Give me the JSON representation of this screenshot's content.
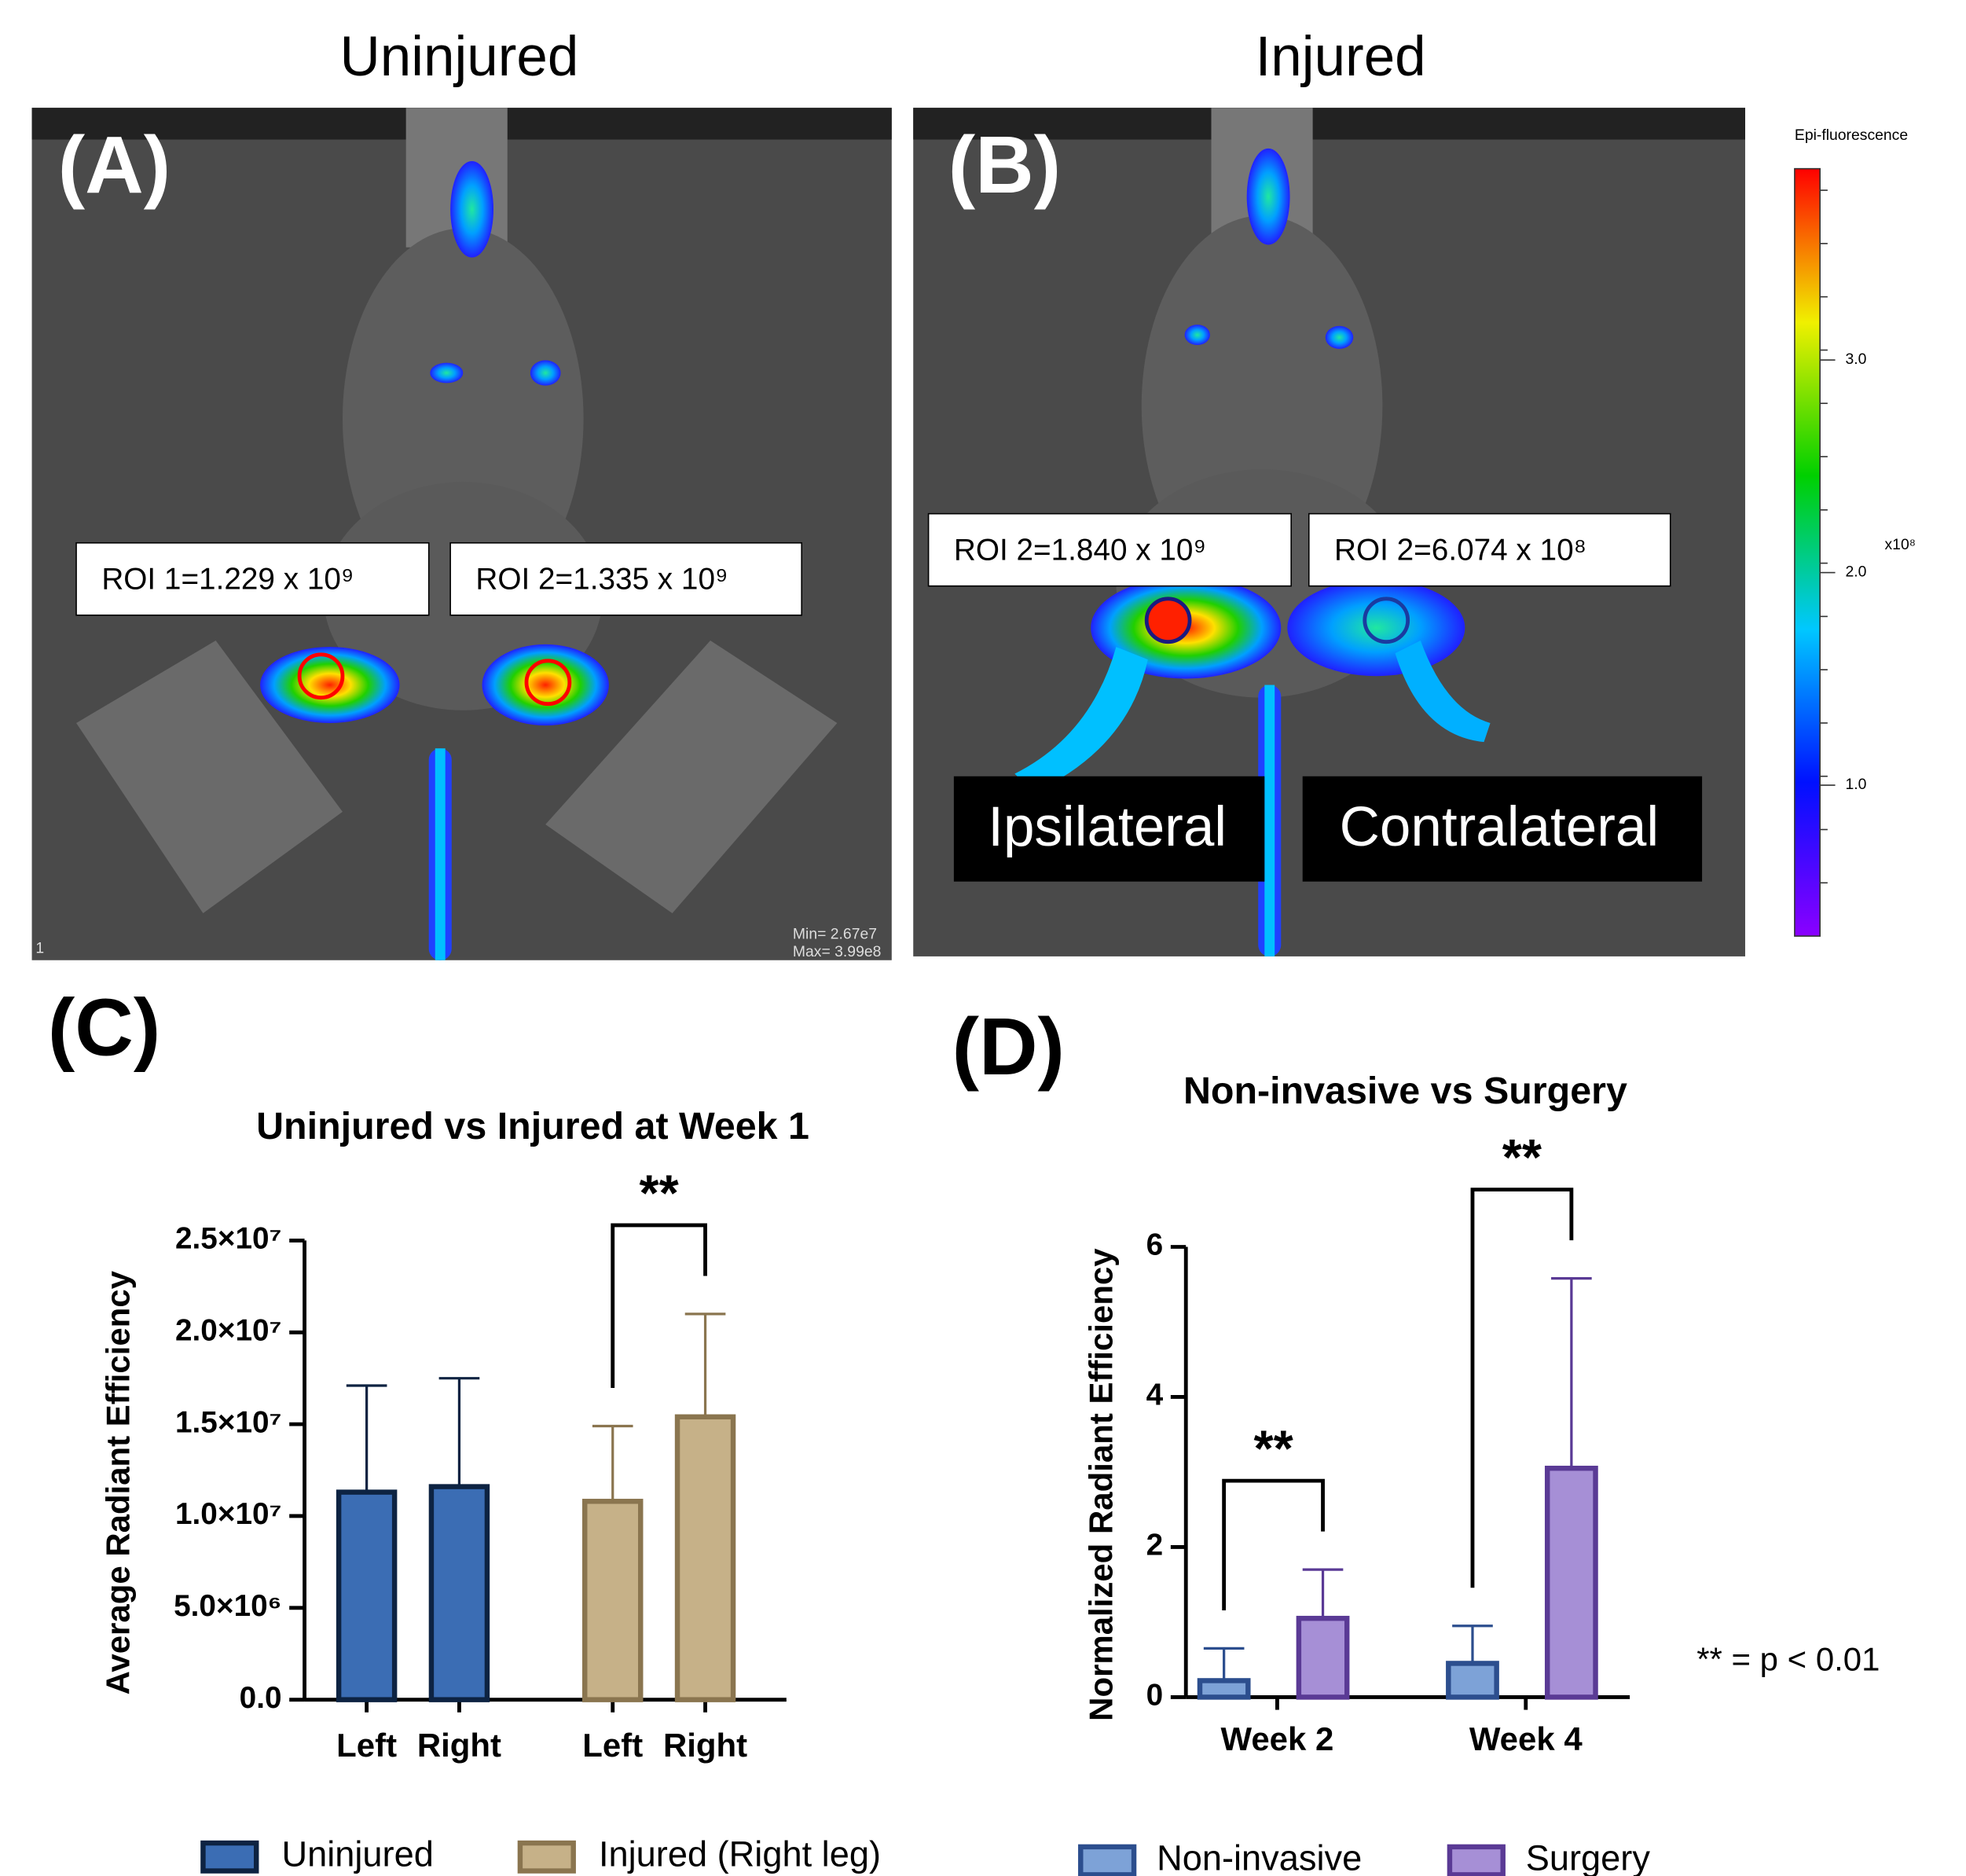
{
  "panel_a": {
    "letter": "(A)",
    "title": "Uninjured",
    "roi_1": "ROI 1=1.229 x 10⁹",
    "roi_2": "ROI 2=1.335 x 10⁹",
    "corner": "1",
    "min": "Min= 2.67e7",
    "max": "Max= 3.99e8"
  },
  "panel_b": {
    "letter": "(B)",
    "title": "Injured",
    "roi_1": "ROI 2=1.840 x 10⁹",
    "roi_2": "ROI 2=6.074 x 10⁸",
    "label_left": "Ipsilateral",
    "label_right": "Contralateral"
  },
  "colorbar": {
    "title": "Epi-fluorescence",
    "unit": "x10⁸",
    "lim": [
      0.29,
      3.9
    ],
    "ticks": [
      {
        "value": 1,
        "label": "1.0"
      },
      {
        "value": 2,
        "label": "2.0"
      },
      {
        "value": 3,
        "label": "3.0"
      }
    ]
  },
  "panel_c_letter": "(C)",
  "panel_d_letter": "(D)",
  "footnote": "** = p < 0.01",
  "chart_data": [
    {
      "type": "bar",
      "title": "Uninjured vs Injured at Week 1",
      "y_label": "Average Radiant Efficiency",
      "categories": [
        "Left",
        "Right",
        "Left",
        "Right"
      ],
      "series": [
        {
          "name": "Uninjured",
          "color": "#3b6db4",
          "edge": "#0d2342",
          "values": [
            11300000,
            11600000,
            null,
            null
          ],
          "errors": [
            5800000,
            5900000,
            null,
            null
          ]
        },
        {
          "name": "Injured (Right leg)",
          "color": "#c6b188",
          "edge": "#8a754f",
          "values": [
            null,
            null,
            10800000,
            15400000
          ],
          "errors": [
            null,
            null,
            4100000,
            5600000
          ]
        }
      ],
      "ylim": [
        0,
        25000000
      ],
      "yticks": [
        {
          "value": 0,
          "label": "0.0"
        },
        {
          "value": 5000000,
          "label": "5.0×10⁶"
        },
        {
          "value": 10000000,
          "label": "1.0×10⁷"
        },
        {
          "value": 15000000,
          "label": "1.5×10⁷"
        },
        {
          "value": 20000000,
          "label": "2.0×10⁷"
        },
        {
          "value": 25000000,
          "label": "2.5×10⁷"
        }
      ],
      "annotations": [
        {
          "text": "**",
          "from": [
            2,
            1
          ],
          "to": [
            3,
            1
          ]
        }
      ]
    },
    {
      "type": "bar",
      "title": "Non-invasive vs Surgery",
      "y_label": "Normalized Radiant Efficiency",
      "categories": [
        "Week 2",
        "Week 4"
      ],
      "series": [
        {
          "name": "Non-invasive",
          "color": "#7da2d7",
          "edge": "#2c4e8e",
          "values": [
            0.22,
            0.45
          ],
          "errors": [
            0.43,
            0.5
          ]
        },
        {
          "name": "Surgery",
          "color": "#a68fd6",
          "edge": "#5a3a95",
          "values": [
            1.05,
            3.05
          ],
          "errors": [
            0.65,
            2.53
          ]
        }
      ],
      "ylim": [
        0,
        6
      ],
      "yticks": [
        0,
        2,
        4,
        6
      ],
      "annotations": [
        {
          "text": "**",
          "from": [
            0,
            0
          ],
          "to": [
            0,
            1
          ]
        },
        {
          "text": "**",
          "from": [
            1,
            0
          ],
          "to": [
            1,
            1
          ]
        }
      ]
    }
  ]
}
